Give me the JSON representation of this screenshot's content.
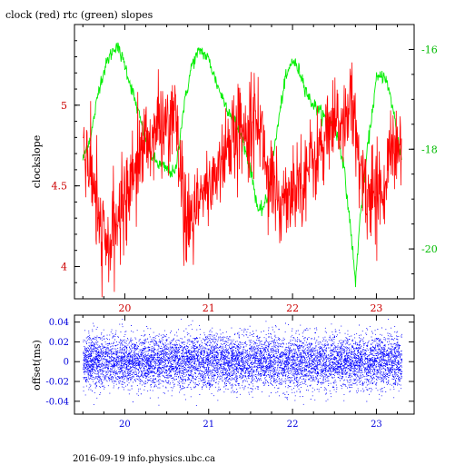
{
  "header": {
    "title": "clock (red) rtc (green) slopes"
  },
  "footer": {
    "text": "2016-09-19 info.physics.ubc.ca"
  },
  "colors": {
    "clock": "#ff0000",
    "rtc": "#00ee00",
    "offset": "#0000ff",
    "left_axis": "#cc0000",
    "right_axis": "#00bb00",
    "bottom_axis": "#0000dd"
  },
  "chart_data": [
    {
      "type": "line",
      "ylabel": "clockslope",
      "xlim": [
        19.4,
        23.45
      ],
      "x_ticks": [
        20,
        21,
        22,
        23
      ],
      "x_tick_labels": [
        "20",
        "21",
        "22",
        "23"
      ],
      "left_axis": {
        "ylim": [
          3.8,
          5.5
        ],
        "ticks": [
          4,
          4.5,
          5
        ],
        "tick_labels": [
          "4",
          "4.5",
          "5"
        ]
      },
      "right_axis": {
        "ylim": [
          -21.0,
          -15.5
        ],
        "ticks": [
          -20,
          -18,
          -16
        ],
        "tick_labels": [
          "-20",
          "-18",
          "-16"
        ]
      },
      "grid": false,
      "series": [
        {
          "name": "clock",
          "axis": "left",
          "x": [
            19.5,
            19.6,
            19.7,
            19.8,
            19.9,
            20.0,
            20.1,
            20.2,
            20.3,
            20.4,
            20.5,
            20.6,
            20.65,
            20.7,
            20.8,
            20.9,
            21.0,
            21.1,
            21.2,
            21.3,
            21.4,
            21.5,
            21.6,
            21.7,
            21.8,
            21.9,
            22.0,
            22.1,
            22.2,
            22.3,
            22.4,
            22.5,
            22.6,
            22.7,
            22.8,
            22.9,
            23.0,
            23.1,
            23.2,
            23.3
          ],
          "y": [
            4.8,
            4.55,
            4.25,
            4.1,
            4.25,
            4.45,
            4.6,
            4.72,
            4.8,
            4.85,
            4.9,
            4.95,
            4.6,
            4.3,
            4.25,
            4.4,
            4.5,
            4.6,
            4.7,
            4.8,
            4.88,
            4.9,
            4.92,
            4.6,
            4.35,
            4.45,
            4.5,
            4.55,
            4.62,
            4.7,
            4.78,
            4.85,
            4.92,
            5.0,
            4.6,
            4.45,
            4.45,
            4.55,
            4.7,
            4.8
          ],
          "noise": 0.14
        },
        {
          "name": "rtc",
          "axis": "right",
          "x": [
            19.5,
            19.6,
            19.7,
            19.8,
            19.9,
            20.0,
            20.1,
            20.2,
            20.3,
            20.4,
            20.5,
            20.6,
            20.7,
            20.8,
            20.9,
            21.0,
            21.1,
            21.2,
            21.3,
            21.4,
            21.5,
            21.6,
            21.7,
            21.8,
            21.9,
            22.0,
            22.1,
            22.2,
            22.3,
            22.4,
            22.5,
            22.6,
            22.7,
            22.75,
            22.8,
            22.9,
            23.0,
            23.1,
            23.2,
            23.3
          ],
          "y": [
            -18.2,
            -17.7,
            -16.7,
            -16.2,
            -15.9,
            -16.3,
            -16.9,
            -17.5,
            -18.1,
            -18.3,
            -18.4,
            -18.5,
            -17.2,
            -16.3,
            -16.0,
            -16.2,
            -16.7,
            -17.1,
            -17.4,
            -17.8,
            -18.4,
            -19.3,
            -19.0,
            -17.8,
            -16.7,
            -16.2,
            -16.5,
            -17.0,
            -17.2,
            -17.4,
            -17.5,
            -18.2,
            -19.7,
            -20.7,
            -19.5,
            -17.9,
            -16.6,
            -16.5,
            -17.2,
            -18.2
          ],
          "noise": 0.12
        }
      ]
    },
    {
      "type": "scatter",
      "ylabel": "offset(ms)",
      "xlim": [
        19.4,
        23.45
      ],
      "x_ticks": [
        20,
        21,
        22,
        23
      ],
      "x_tick_labels": [
        "20",
        "21",
        "22",
        "23"
      ],
      "ylim": [
        -0.053,
        0.047
      ],
      "y_ticks": [
        -0.04,
        -0.02,
        0,
        0.02,
        0.04
      ],
      "y_tick_labels": [
        "-0.04",
        "-0.02",
        "0",
        "0.02",
        "0.04"
      ],
      "x_range": [
        19.5,
        23.3
      ],
      "center": 0.0,
      "spread": 0.013,
      "grid": false,
      "series": [
        {
          "name": "offset",
          "points": 9000
        }
      ]
    }
  ]
}
